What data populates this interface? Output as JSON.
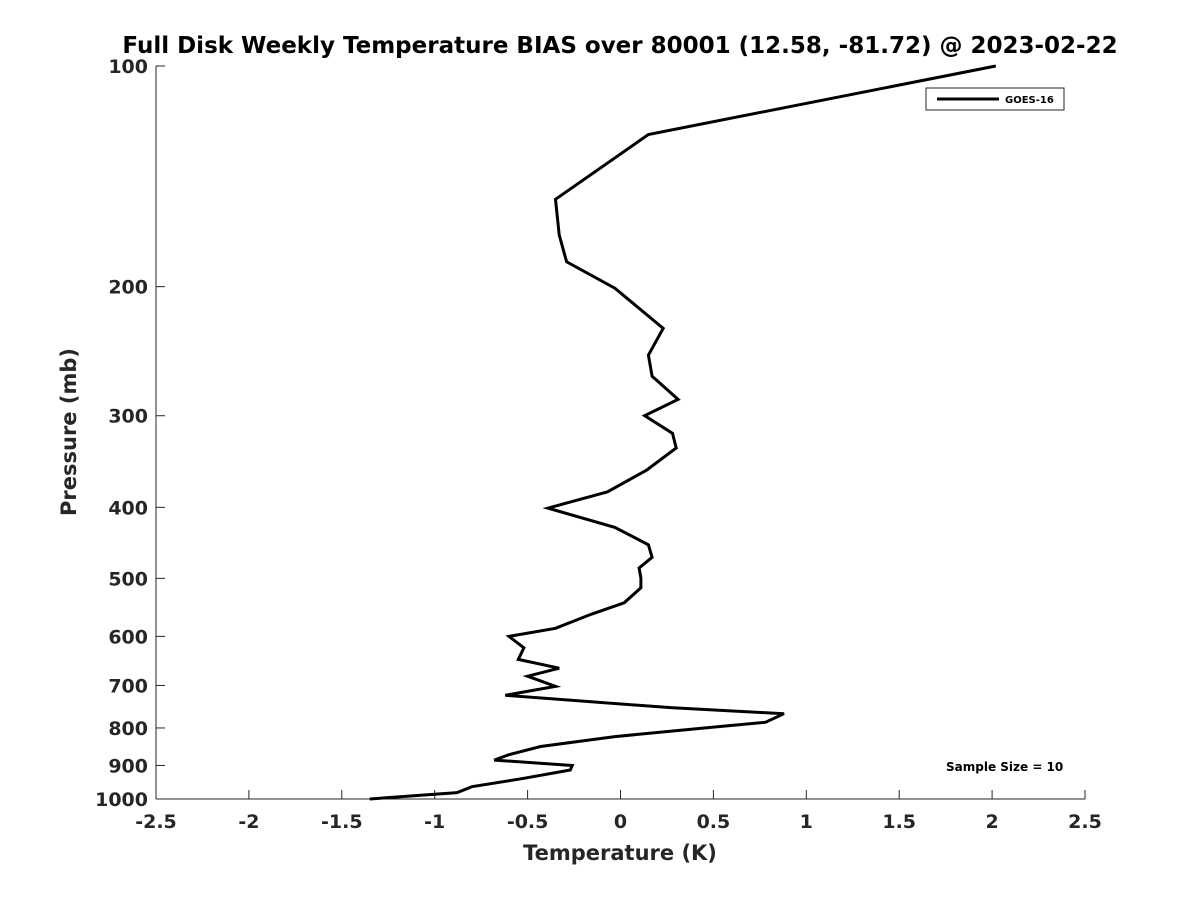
{
  "chart_data": {
    "type": "line",
    "title": "Full Disk Weekly Temperature BIAS over 80001 (12.58, -81.72) @ 2023-02-22",
    "xlabel": "Temperature (K)",
    "ylabel": "Pressure (mb)",
    "xlim": [
      -2.5,
      2.5
    ],
    "ylim": [
      1000,
      100
    ],
    "y_scale": "log",
    "y_direction": "reversed",
    "x_ticks": [
      "-2.5",
      "-2",
      "-1.5",
      "-1",
      "-0.5",
      "0",
      "0.5",
      "1",
      "1.5",
      "2",
      "2.5"
    ],
    "y_ticks": [
      "100",
      "200",
      "300",
      "400",
      "500",
      "600",
      "700",
      "800",
      "900",
      "1000"
    ],
    "grid": false,
    "legend_position": "top-right",
    "annotation": "Sample Size = 10",
    "series": [
      {
        "name": "GOES-16",
        "color": "#000000",
        "points": [
          {
            "t": 2.02,
            "p": 100
          },
          {
            "t": 0.15,
            "p": 124
          },
          {
            "t": -0.35,
            "p": 152
          },
          {
            "t": -0.33,
            "p": 170
          },
          {
            "t": -0.29,
            "p": 185
          },
          {
            "t": -0.03,
            "p": 201
          },
          {
            "t": 0.23,
            "p": 228
          },
          {
            "t": 0.15,
            "p": 248
          },
          {
            "t": 0.17,
            "p": 265
          },
          {
            "t": 0.31,
            "p": 285
          },
          {
            "t": 0.13,
            "p": 300
          },
          {
            "t": 0.28,
            "p": 317
          },
          {
            "t": 0.3,
            "p": 332
          },
          {
            "t": 0.14,
            "p": 356
          },
          {
            "t": -0.07,
            "p": 381
          },
          {
            "t": -0.39,
            "p": 401
          },
          {
            "t": -0.03,
            "p": 426
          },
          {
            "t": 0.15,
            "p": 450
          },
          {
            "t": 0.17,
            "p": 468
          },
          {
            "t": 0.1,
            "p": 484
          },
          {
            "t": 0.11,
            "p": 500
          },
          {
            "t": 0.11,
            "p": 515
          },
          {
            "t": 0.02,
            "p": 540
          },
          {
            "t": -0.16,
            "p": 560
          },
          {
            "t": -0.35,
            "p": 585
          },
          {
            "t": -0.6,
            "p": 600
          },
          {
            "t": -0.52,
            "p": 622
          },
          {
            "t": -0.55,
            "p": 645
          },
          {
            "t": -0.33,
            "p": 663
          },
          {
            "t": -0.5,
            "p": 680
          },
          {
            "t": -0.35,
            "p": 702
          },
          {
            "t": -0.62,
            "p": 722
          },
          {
            "t": 0.28,
            "p": 751
          },
          {
            "t": 0.88,
            "p": 765
          },
          {
            "t": 0.78,
            "p": 786
          },
          {
            "t": 0.45,
            "p": 800
          },
          {
            "t": -0.03,
            "p": 822
          },
          {
            "t": -0.43,
            "p": 848
          },
          {
            "t": -0.6,
            "p": 870
          },
          {
            "t": -0.68,
            "p": 885
          },
          {
            "t": -0.26,
            "p": 900
          },
          {
            "t": -0.27,
            "p": 913
          },
          {
            "t": -0.52,
            "p": 937
          },
          {
            "t": -0.8,
            "p": 962
          },
          {
            "t": -0.88,
            "p": 980
          },
          {
            "t": -1.35,
            "p": 1000
          }
        ]
      }
    ]
  }
}
